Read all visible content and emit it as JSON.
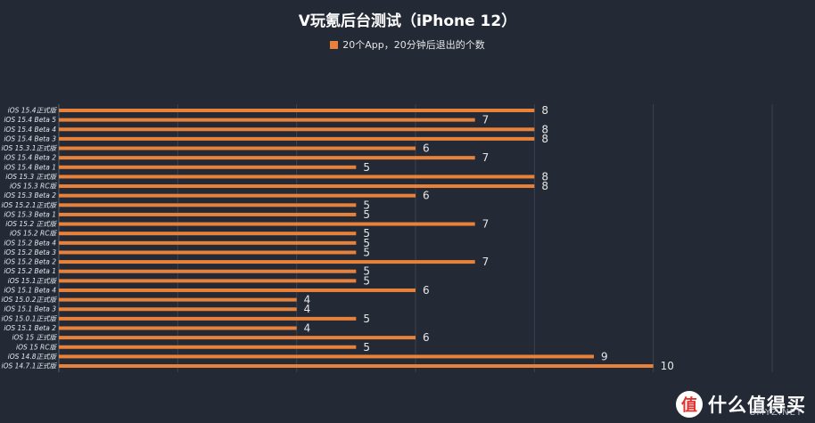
{
  "chart_data": {
    "type": "bar",
    "orientation": "horizontal",
    "title": "V玩氪后台测试（iPhone 12）",
    "legend_position": "top-center",
    "grid": true,
    "xlim": [
      0,
      12
    ],
    "bar_color": "#e8813a",
    "categories": [
      "iOS 15.4正式版",
      "iOS 15.4 Beta 5",
      "iOS 15.4 Beta 4",
      "iOS 15.4 Beta 3",
      "iOS 15.3.1正式版",
      "iOS 15.4 Beta 2",
      "iOS 15.4 Beta 1",
      "iOS 15.3 正式版",
      "iOS 15.3 RC版",
      "iOS 15.3 Beta 2",
      "iOS 15.2.1正式版",
      "iOS 15.3 Beta 1",
      "iOS 15.2 正式版",
      "iOS 15.2 RC版",
      "iOS 15.2 Beta 4",
      "iOS 15.2 Beta 3",
      "iOS 15.2 Beta 2",
      "iOS 15.2 Beta 1",
      "iOS 15.1正式版",
      "iOS 15.1 Beta 4",
      "iOS 15.0.2正式版",
      "iOS 15.1 Beta 3",
      "iOS 15.0.1正式版",
      "iOS 15.1 Beta 2",
      "iOS 15 正式版",
      "iOS 15 RC版",
      "iOS 14.8正式版",
      "iOS 14.7.1正式版"
    ],
    "series": [
      {
        "name": "20个App，20分钟后退出的个数",
        "values": [
          8,
          7,
          8,
          8,
          6,
          7,
          5,
          8,
          8,
          6,
          5,
          5,
          7,
          5,
          5,
          5,
          7,
          5,
          5,
          6,
          4,
          4,
          5,
          4,
          6,
          5,
          9,
          10
        ]
      }
    ]
  },
  "watermark": {
    "badge": "值",
    "text": "什么值得买",
    "sub": "SMYZ.NET"
  }
}
